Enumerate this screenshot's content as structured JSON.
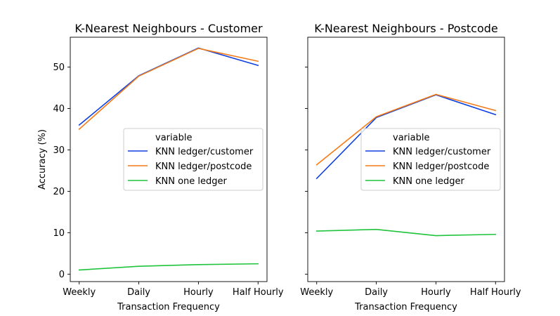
{
  "chart_data": [
    {
      "type": "line",
      "title": "K-Nearest Neighbours - Customer",
      "xlabel": "Transaction Frequency",
      "ylabel": "Accuracy (%)",
      "categories": [
        "Weekly",
        "Daily",
        "Hourly",
        "Half Hourly"
      ],
      "ylim": [
        -1.8,
        57.2
      ],
      "yticks": [
        0,
        10,
        20,
        30,
        40,
        50
      ],
      "legend": {
        "title": "variable",
        "placement": "center-right"
      },
      "series": [
        {
          "name": "KNN ledger/customer",
          "color": "#0d3fe0",
          "values": [
            36.0,
            47.9,
            54.6,
            50.4
          ]
        },
        {
          "name": "KNN ledger/postcode",
          "color": "#f47c18",
          "values": [
            35.0,
            47.8,
            54.5,
            51.4
          ]
        },
        {
          "name": "KNN one ledger",
          "color": "#1fc43c",
          "values": [
            1.0,
            1.9,
            2.3,
            2.5
          ]
        }
      ]
    },
    {
      "type": "line",
      "title": "K-Nearest Neighbours - Postcode",
      "xlabel": "Transaction Frequency",
      "ylabel": "",
      "categories": [
        "Weekly",
        "Daily",
        "Hourly",
        "Half Hourly"
      ],
      "ylim": [
        -1.8,
        57.2
      ],
      "yticks": [
        0,
        10,
        20,
        30,
        40,
        50
      ],
      "legend": {
        "title": "variable",
        "placement": "center-right"
      },
      "series": [
        {
          "name": "KNN ledger/customer",
          "color": "#0d3fe0",
          "values": [
            23.1,
            37.8,
            43.3,
            38.5
          ]
        },
        {
          "name": "KNN ledger/postcode",
          "color": "#f47c18",
          "values": [
            26.4,
            38.0,
            43.4,
            39.5
          ]
        },
        {
          "name": "KNN one ledger",
          "color": "#1fc43c",
          "values": [
            10.4,
            10.8,
            9.3,
            9.6
          ]
        }
      ]
    }
  ]
}
